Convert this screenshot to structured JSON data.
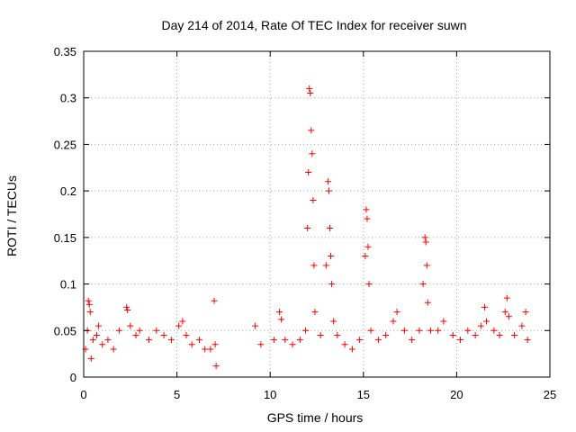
{
  "chart_data": {
    "type": "scatter",
    "title": "Day 214 of 2014, Rate Of TEC Index for receiver suwn",
    "xlabel": "GPS time / hours",
    "ylabel": "ROTI / TECUs",
    "xlim": [
      0,
      25
    ],
    "ylim": [
      0,
      0.35
    ],
    "xticks": [
      0,
      5,
      10,
      15,
      20,
      25
    ],
    "yticks": [
      0,
      0.05,
      0.1,
      0.15,
      0.2,
      0.25,
      0.3,
      0.35
    ],
    "xtick_labels": [
      "0",
      "5",
      "10",
      "15",
      "20",
      "25"
    ],
    "ytick_labels": [
      "0",
      "0.05",
      "0.1",
      "0.15",
      "0.2",
      "0.25",
      "0.3",
      "0.35"
    ],
    "grid": true,
    "marker": "+",
    "marker_color": "#ff0000",
    "series": [
      {
        "name": "ROTI",
        "points": [
          [
            0.1,
            0.03
          ],
          [
            0.2,
            0.05
          ],
          [
            0.25,
            0.082
          ],
          [
            0.3,
            0.078
          ],
          [
            0.35,
            0.07
          ],
          [
            0.4,
            0.02
          ],
          [
            0.5,
            0.04
          ],
          [
            0.7,
            0.045
          ],
          [
            0.8,
            0.055
          ],
          [
            1.0,
            0.035
          ],
          [
            1.3,
            0.04
          ],
          [
            1.6,
            0.03
          ],
          [
            1.9,
            0.05
          ],
          [
            2.3,
            0.075
          ],
          [
            2.35,
            0.072
          ],
          [
            2.5,
            0.055
          ],
          [
            2.8,
            0.045
          ],
          [
            3.0,
            0.05
          ],
          [
            3.5,
            0.04
          ],
          [
            3.9,
            0.05
          ],
          [
            4.3,
            0.045
          ],
          [
            4.7,
            0.04
          ],
          [
            5.1,
            0.055
          ],
          [
            5.3,
            0.06
          ],
          [
            5.5,
            0.045
          ],
          [
            5.8,
            0.035
          ],
          [
            6.2,
            0.04
          ],
          [
            6.5,
            0.03
          ],
          [
            6.8,
            0.03
          ],
          [
            7.0,
            0.082
          ],
          [
            7.05,
            0.035
          ],
          [
            7.1,
            0.012
          ],
          [
            9.2,
            0.055
          ],
          [
            9.5,
            0.035
          ],
          [
            10.2,
            0.04
          ],
          [
            10.5,
            0.07
          ],
          [
            10.6,
            0.062
          ],
          [
            10.8,
            0.04
          ],
          [
            11.2,
            0.035
          ],
          [
            11.6,
            0.04
          ],
          [
            11.9,
            0.05
          ],
          [
            12.0,
            0.16
          ],
          [
            12.05,
            0.22
          ],
          [
            12.1,
            0.31
          ],
          [
            12.15,
            0.305
          ],
          [
            12.2,
            0.265
          ],
          [
            12.25,
            0.24
          ],
          [
            12.3,
            0.19
          ],
          [
            12.35,
            0.12
          ],
          [
            12.4,
            0.07
          ],
          [
            12.7,
            0.045
          ],
          [
            13.0,
            0.12
          ],
          [
            13.1,
            0.21
          ],
          [
            13.15,
            0.2
          ],
          [
            13.2,
            0.16
          ],
          [
            13.25,
            0.13
          ],
          [
            13.3,
            0.1
          ],
          [
            13.4,
            0.06
          ],
          [
            13.6,
            0.045
          ],
          [
            14.0,
            0.035
          ],
          [
            14.4,
            0.03
          ],
          [
            14.8,
            0.04
          ],
          [
            15.1,
            0.13
          ],
          [
            15.15,
            0.18
          ],
          [
            15.2,
            0.17
          ],
          [
            15.25,
            0.14
          ],
          [
            15.3,
            0.1
          ],
          [
            15.4,
            0.05
          ],
          [
            15.8,
            0.04
          ],
          [
            16.2,
            0.045
          ],
          [
            16.6,
            0.06
          ],
          [
            16.8,
            0.07
          ],
          [
            17.2,
            0.05
          ],
          [
            17.6,
            0.04
          ],
          [
            18.0,
            0.05
          ],
          [
            18.2,
            0.1
          ],
          [
            18.3,
            0.15
          ],
          [
            18.35,
            0.145
          ],
          [
            18.4,
            0.12
          ],
          [
            18.45,
            0.08
          ],
          [
            18.6,
            0.05
          ],
          [
            19.0,
            0.05
          ],
          [
            19.3,
            0.06
          ],
          [
            19.8,
            0.045
          ],
          [
            20.2,
            0.04
          ],
          [
            20.6,
            0.05
          ],
          [
            21.0,
            0.045
          ],
          [
            21.3,
            0.055
          ],
          [
            21.5,
            0.075
          ],
          [
            21.6,
            0.06
          ],
          [
            22.0,
            0.05
          ],
          [
            22.3,
            0.045
          ],
          [
            22.6,
            0.07
          ],
          [
            22.7,
            0.085
          ],
          [
            22.8,
            0.065
          ],
          [
            23.1,
            0.045
          ],
          [
            23.5,
            0.055
          ],
          [
            23.7,
            0.07
          ],
          [
            23.8,
            0.04
          ]
        ]
      }
    ]
  }
}
